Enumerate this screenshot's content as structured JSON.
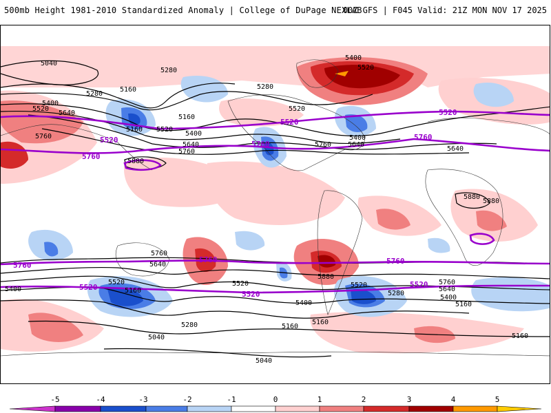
{
  "header": {
    "title": "500mb Height 1981-2010 Standardized Anomaly | College of DuPage NEXLAB",
    "run_info": "00Z GFS | F045 Valid: 21Z MON NOV 17 2025"
  },
  "map": {
    "contour_labels_black": [
      "5040",
      "5280",
      "5160",
      "5280",
      "5400",
      "5520",
      "5640",
      "5760",
      "5160",
      "5520",
      "5280",
      "5160",
      "5400",
      "5640",
      "5760",
      "5400",
      "5520",
      "5640",
      "5880",
      "5880",
      "5880",
      "5760",
      "5640",
      "5520",
      "5400",
      "5160",
      "5280",
      "5040",
      "5160",
      "5400",
      "5520",
      "5640",
      "5760",
      "5880",
      "5520",
      "5400",
      "5160",
      "5040",
      "5760",
      "5640",
      "5520",
      "5400",
      "5280",
      "5160",
      "5160"
    ],
    "contour_labels_purple": [
      "5520",
      "5520",
      "5760",
      "5760",
      "5520",
      "5760",
      "5760",
      "5760",
      "5520",
      "5520",
      "5520",
      "5760",
      "5520"
    ],
    "colors": {
      "neg5": "#cc33cc",
      "neg4": "#8800aa",
      "neg3": "#1a4fcc",
      "neg2": "#4a7de6",
      "neg1": "#b8d4f5",
      "pos1": "#ffd0d0",
      "pos2": "#f08080",
      "pos3": "#d42a2a",
      "pos4": "#a00000",
      "pos5": "#ff9900",
      "contour_black": "#000000",
      "contour_purple": "#9900cc"
    }
  },
  "colorbar": {
    "ticks": [
      "-5",
      "-4",
      "-3",
      "-2",
      "-1",
      "0",
      "1",
      "2",
      "3",
      "4",
      "5"
    ]
  }
}
